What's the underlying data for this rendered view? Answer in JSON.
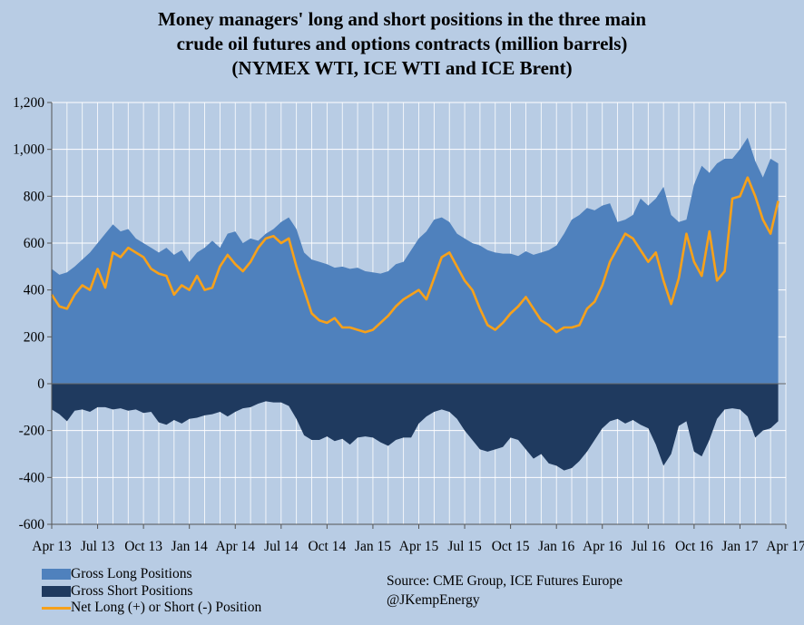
{
  "title_lines": [
    "Money managers' long and short positions in the three main",
    "crude oil futures and options contracts (million barrels)",
    "(NYMEX WTI, ICE WTI and ICE Brent)"
  ],
  "source_lines": [
    "Source:  CME Group, ICE Futures Europe",
    "@JKempEnergy"
  ],
  "colors": {
    "background": "#b8cce4",
    "gross_long": "#4f81bd",
    "gross_short": "#1f3a5f",
    "net": "#f7a11a",
    "grid": "#ffffff"
  },
  "chart_data": {
    "type": "area",
    "title": "Money managers' long and short positions in the three main crude oil futures and options contracts (million barrels) (NYMEX WTI, ICE WTI and ICE Brent)",
    "xlabel": "",
    "ylabel": "",
    "ylim": [
      -600,
      1200
    ],
    "yticks": [
      -600,
      -400,
      -200,
      0,
      200,
      400,
      600,
      800,
      1000,
      1200
    ],
    "ytick_labels": [
      "-600",
      "-400",
      "-200",
      "0",
      "200",
      "400",
      "600",
      "800",
      "1,000",
      "1,200"
    ],
    "xtick_labels": [
      "Apr 13",
      "Jul 13",
      "Oct 13",
      "Jan 14",
      "Apr 14",
      "Jul 14",
      "Oct 14",
      "Jan 15",
      "Apr 15",
      "Jul 15",
      "Oct 15",
      "Jan 16",
      "Apr 16",
      "Jul 16",
      "Oct 16",
      "Jan 17",
      "Apr 17"
    ],
    "x_unit": "months since Apr 13",
    "grid": true,
    "legend_position": "bottom-left",
    "series": [
      {
        "name": "Gross Long Positions",
        "kind": "area",
        "points": [
          [
            0,
            490
          ],
          [
            0.5,
            465
          ],
          [
            1,
            475
          ],
          [
            1.5,
            500
          ],
          [
            2,
            530
          ],
          [
            2.5,
            560
          ],
          [
            3,
            600
          ],
          [
            3.5,
            640
          ],
          [
            4,
            680
          ],
          [
            4.5,
            650
          ],
          [
            5,
            660
          ],
          [
            5.5,
            620
          ],
          [
            6,
            600
          ],
          [
            6.5,
            580
          ],
          [
            7,
            560
          ],
          [
            7.5,
            580
          ],
          [
            8,
            550
          ],
          [
            8.5,
            570
          ],
          [
            9,
            520
          ],
          [
            9.5,
            560
          ],
          [
            10,
            580
          ],
          [
            10.5,
            610
          ],
          [
            11,
            580
          ],
          [
            11.5,
            640
          ],
          [
            12,
            650
          ],
          [
            12.5,
            600
          ],
          [
            13,
            620
          ],
          [
            13.5,
            610
          ],
          [
            14,
            640
          ],
          [
            14.5,
            660
          ],
          [
            15,
            690
          ],
          [
            15.5,
            710
          ],
          [
            16,
            660
          ],
          [
            16.5,
            560
          ],
          [
            17,
            530
          ],
          [
            17.5,
            520
          ],
          [
            18,
            510
          ],
          [
            18.5,
            495
          ],
          [
            19,
            500
          ],
          [
            19.5,
            490
          ],
          [
            20,
            495
          ],
          [
            20.5,
            480
          ],
          [
            21,
            475
          ],
          [
            21.5,
            470
          ],
          [
            22,
            480
          ],
          [
            22.5,
            510
          ],
          [
            23,
            520
          ],
          [
            23.5,
            570
          ],
          [
            24,
            620
          ],
          [
            24.5,
            650
          ],
          [
            25,
            700
          ],
          [
            25.5,
            710
          ],
          [
            26,
            690
          ],
          [
            26.5,
            640
          ],
          [
            27,
            620
          ],
          [
            27.5,
            600
          ],
          [
            28,
            590
          ],
          [
            28.5,
            570
          ],
          [
            29,
            560
          ],
          [
            29.5,
            555
          ],
          [
            30,
            555
          ],
          [
            30.5,
            545
          ],
          [
            31,
            565
          ],
          [
            31.5,
            550
          ],
          [
            32,
            560
          ],
          [
            32.5,
            570
          ],
          [
            33,
            590
          ],
          [
            33.5,
            640
          ],
          [
            34,
            700
          ],
          [
            34.5,
            720
          ],
          [
            35,
            750
          ],
          [
            35.5,
            740
          ],
          [
            36,
            760
          ],
          [
            36.5,
            770
          ],
          [
            37,
            690
          ],
          [
            37.5,
            700
          ],
          [
            38,
            720
          ],
          [
            38.5,
            790
          ],
          [
            39,
            760
          ],
          [
            39.5,
            790
          ],
          [
            40,
            840
          ],
          [
            40.5,
            720
          ],
          [
            41,
            690
          ],
          [
            41.5,
            700
          ],
          [
            42,
            850
          ],
          [
            42.5,
            930
          ],
          [
            43,
            900
          ],
          [
            43.5,
            940
          ],
          [
            44,
            960
          ],
          [
            44.5,
            960
          ],
          [
            45,
            1000
          ],
          [
            45.5,
            1050
          ],
          [
            46,
            950
          ],
          [
            46.5,
            880
          ],
          [
            47,
            960
          ],
          [
            47.5,
            940
          ]
        ]
      },
      {
        "name": "Gross Short Positions",
        "kind": "area",
        "points": [
          [
            0,
            -110
          ],
          [
            0.5,
            -130
          ],
          [
            1,
            -160
          ],
          [
            1.5,
            -115
          ],
          [
            2,
            -110
          ],
          [
            2.5,
            -120
          ],
          [
            3,
            -100
          ],
          [
            3.5,
            -100
          ],
          [
            4,
            -110
          ],
          [
            4.5,
            -105
          ],
          [
            5,
            -115
          ],
          [
            5.5,
            -110
          ],
          [
            6,
            -125
          ],
          [
            6.5,
            -120
          ],
          [
            7,
            -165
          ],
          [
            7.5,
            -175
          ],
          [
            8,
            -155
          ],
          [
            8.5,
            -170
          ],
          [
            9,
            -150
          ],
          [
            9.5,
            -145
          ],
          [
            10,
            -135
          ],
          [
            10.5,
            -130
          ],
          [
            11,
            -120
          ],
          [
            11.5,
            -140
          ],
          [
            12,
            -120
          ],
          [
            12.5,
            -105
          ],
          [
            13,
            -100
          ],
          [
            13.5,
            -85
          ],
          [
            14,
            -75
          ],
          [
            14.5,
            -80
          ],
          [
            15,
            -80
          ],
          [
            15.5,
            -95
          ],
          [
            16,
            -150
          ],
          [
            16.5,
            -220
          ],
          [
            17,
            -240
          ],
          [
            17.5,
            -240
          ],
          [
            18,
            -225
          ],
          [
            18.5,
            -245
          ],
          [
            19,
            -235
          ],
          [
            19.5,
            -260
          ],
          [
            20,
            -230
          ],
          [
            20.5,
            -225
          ],
          [
            21,
            -230
          ],
          [
            21.5,
            -250
          ],
          [
            22,
            -265
          ],
          [
            22.5,
            -240
          ],
          [
            23,
            -230
          ],
          [
            23.5,
            -230
          ],
          [
            24,
            -170
          ],
          [
            24.5,
            -140
          ],
          [
            25,
            -120
          ],
          [
            25.5,
            -110
          ],
          [
            26,
            -120
          ],
          [
            26.5,
            -150
          ],
          [
            27,
            -200
          ],
          [
            27.5,
            -240
          ],
          [
            28,
            -280
          ],
          [
            28.5,
            -290
          ],
          [
            29,
            -280
          ],
          [
            29.5,
            -270
          ],
          [
            30,
            -230
          ],
          [
            30.5,
            -240
          ],
          [
            31,
            -280
          ],
          [
            31.5,
            -320
          ],
          [
            32,
            -300
          ],
          [
            32.5,
            -340
          ],
          [
            33,
            -350
          ],
          [
            33.5,
            -370
          ],
          [
            34,
            -360
          ],
          [
            34.5,
            -330
          ],
          [
            35,
            -290
          ],
          [
            35.5,
            -240
          ],
          [
            36,
            -190
          ],
          [
            36.5,
            -160
          ],
          [
            37,
            -150
          ],
          [
            37.5,
            -170
          ],
          [
            38,
            -155
          ],
          [
            38.5,
            -175
          ],
          [
            39,
            -190
          ],
          [
            39.5,
            -260
          ],
          [
            40,
            -350
          ],
          [
            40.5,
            -300
          ],
          [
            41,
            -180
          ],
          [
            41.5,
            -160
          ],
          [
            42,
            -290
          ],
          [
            42.5,
            -310
          ],
          [
            43,
            -240
          ],
          [
            43.5,
            -150
          ],
          [
            44,
            -110
          ],
          [
            44.5,
            -105
          ],
          [
            45,
            -110
          ],
          [
            45.5,
            -140
          ],
          [
            46,
            -230
          ],
          [
            46.5,
            -200
          ],
          [
            47,
            -190
          ],
          [
            47.5,
            -160
          ]
        ]
      },
      {
        "name": "Net Long (+) or Short (-) Position",
        "kind": "line",
        "points": [
          [
            0,
            380
          ],
          [
            0.5,
            330
          ],
          [
            1,
            320
          ],
          [
            1.5,
            380
          ],
          [
            2,
            420
          ],
          [
            2.5,
            400
          ],
          [
            3,
            490
          ],
          [
            3.5,
            410
          ],
          [
            4,
            560
          ],
          [
            4.5,
            540
          ],
          [
            5,
            580
          ],
          [
            5.5,
            560
          ],
          [
            6,
            540
          ],
          [
            6.5,
            490
          ],
          [
            7,
            470
          ],
          [
            7.5,
            460
          ],
          [
            8,
            380
          ],
          [
            8.5,
            420
          ],
          [
            9,
            400
          ],
          [
            9.5,
            460
          ],
          [
            10,
            400
          ],
          [
            10.5,
            410
          ],
          [
            11,
            500
          ],
          [
            11.5,
            550
          ],
          [
            12,
            510
          ],
          [
            12.5,
            480
          ],
          [
            13,
            520
          ],
          [
            13.5,
            580
          ],
          [
            14,
            620
          ],
          [
            14.5,
            630
          ],
          [
            15,
            600
          ],
          [
            15.5,
            620
          ],
          [
            16,
            500
          ],
          [
            16.5,
            400
          ],
          [
            17,
            300
          ],
          [
            17.5,
            270
          ],
          [
            18,
            260
          ],
          [
            18.5,
            280
          ],
          [
            19,
            240
          ],
          [
            19.5,
            240
          ],
          [
            20,
            230
          ],
          [
            20.5,
            220
          ],
          [
            21,
            230
          ],
          [
            21.5,
            260
          ],
          [
            22,
            290
          ],
          [
            22.5,
            330
          ],
          [
            23,
            360
          ],
          [
            23.5,
            380
          ],
          [
            24,
            400
          ],
          [
            24.5,
            360
          ],
          [
            25,
            450
          ],
          [
            25.5,
            540
          ],
          [
            26,
            560
          ],
          [
            26.5,
            500
          ],
          [
            27,
            440
          ],
          [
            27.5,
            400
          ],
          [
            28,
            320
          ],
          [
            28.5,
            250
          ],
          [
            29,
            230
          ],
          [
            29.5,
            260
          ],
          [
            30,
            300
          ],
          [
            30.5,
            330
          ],
          [
            31,
            370
          ],
          [
            31.5,
            320
          ],
          [
            32,
            270
          ],
          [
            32.5,
            250
          ],
          [
            33,
            220
          ],
          [
            33.5,
            240
          ],
          [
            34,
            240
          ],
          [
            34.5,
            250
          ],
          [
            35,
            320
          ],
          [
            35.5,
            350
          ],
          [
            36,
            420
          ],
          [
            36.5,
            520
          ],
          [
            37,
            580
          ],
          [
            37.5,
            640
          ],
          [
            38,
            620
          ],
          [
            38.5,
            570
          ],
          [
            39,
            520
          ],
          [
            39.5,
            560
          ],
          [
            40,
            440
          ],
          [
            40.5,
            340
          ],
          [
            41,
            450
          ],
          [
            41.5,
            640
          ],
          [
            42,
            520
          ],
          [
            42.5,
            460
          ],
          [
            43,
            650
          ],
          [
            43.5,
            440
          ],
          [
            44,
            480
          ],
          [
            44.5,
            790
          ],
          [
            45,
            800
          ],
          [
            45.5,
            880
          ],
          [
            46,
            800
          ],
          [
            46.5,
            700
          ],
          [
            47,
            640
          ],
          [
            47.5,
            780
          ]
        ]
      }
    ]
  }
}
